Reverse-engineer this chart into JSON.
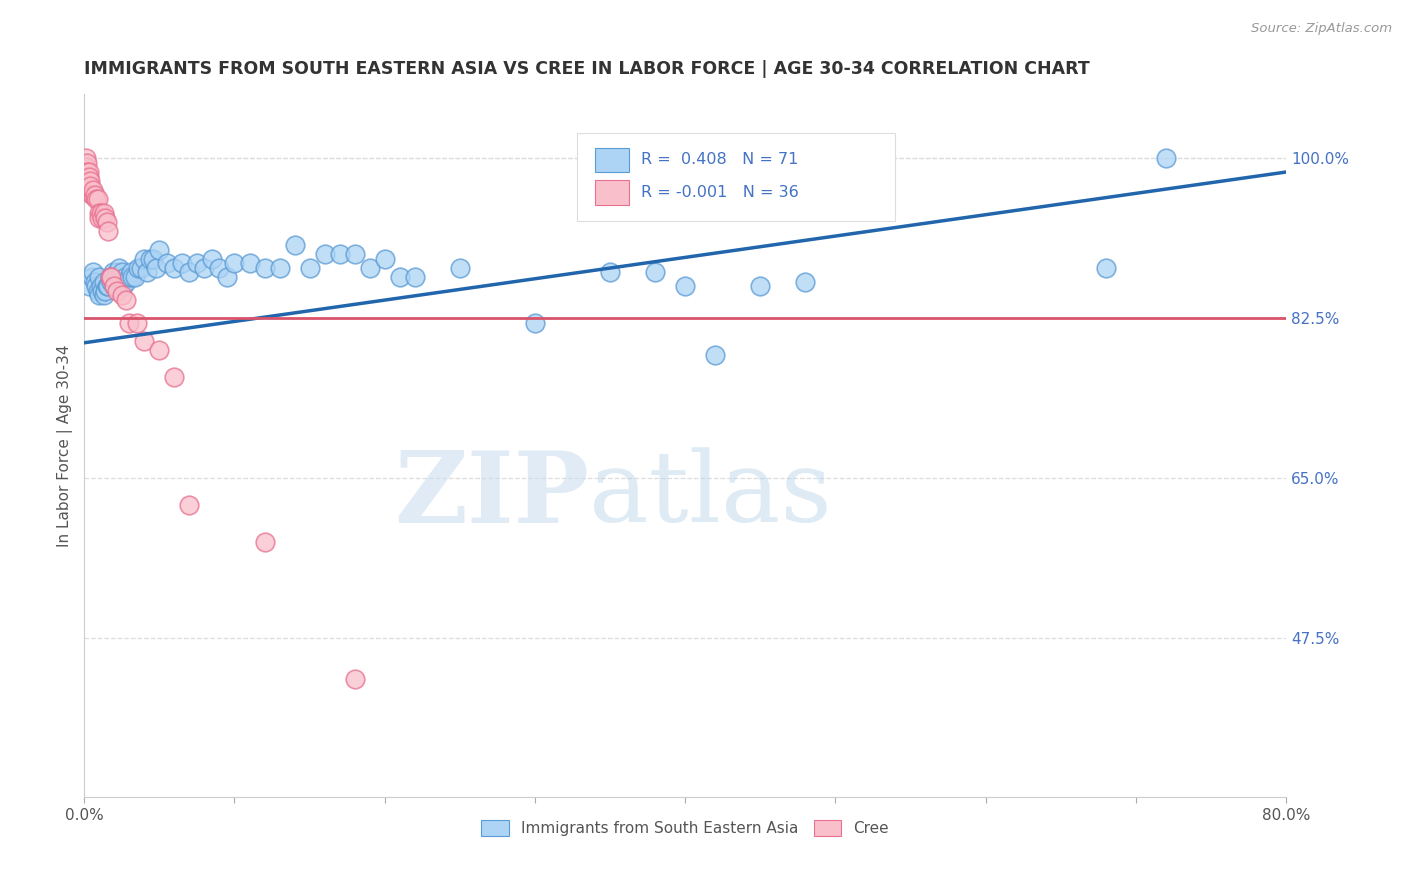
{
  "title": "IMMIGRANTS FROM SOUTH EASTERN ASIA VS CREE IN LABOR FORCE | AGE 30-34 CORRELATION CHART",
  "source": "Source: ZipAtlas.com",
  "ylabel": "In Labor Force | Age 30-34",
  "xlim": [
    0.0,
    0.8
  ],
  "ylim": [
    0.3,
    1.07
  ],
  "xticks": [
    0.0,
    0.1,
    0.2,
    0.3,
    0.4,
    0.5,
    0.6,
    0.7,
    0.8
  ],
  "xticklabels": [
    "0.0%",
    "",
    "",
    "",
    "",
    "",
    "",
    "",
    "80.0%"
  ],
  "yticks_right": [
    0.475,
    0.65,
    0.825,
    1.0
  ],
  "ytickslabels_right": [
    "47.5%",
    "65.0%",
    "82.5%",
    "100.0%"
  ],
  "hlines": [
    0.475,
    0.65,
    0.825,
    1.0
  ],
  "blue_R": 0.408,
  "blue_N": 71,
  "pink_R": -0.001,
  "pink_N": 36,
  "blue_color": "#ADD4F5",
  "pink_color": "#F9BFCA",
  "blue_edge_color": "#5B9BD5",
  "pink_edge_color": "#E87090",
  "blue_line_color": "#2166AC",
  "pink_line_color": "#D9536A",
  "watermark_zip": "ZIP",
  "watermark_atlas": "atlas",
  "blue_trend_x0": 0.0,
  "blue_trend_y0": 0.798,
  "blue_trend_x1": 0.8,
  "blue_trend_y1": 0.985,
  "pink_trend_y": 0.825,
  "blue_scatter_x": [
    0.003,
    0.005,
    0.006,
    0.007,
    0.008,
    0.009,
    0.01,
    0.01,
    0.011,
    0.012,
    0.013,
    0.013,
    0.014,
    0.015,
    0.016,
    0.017,
    0.018,
    0.018,
    0.019,
    0.02,
    0.021,
    0.022,
    0.023,
    0.025,
    0.026,
    0.027,
    0.028,
    0.03,
    0.031,
    0.032,
    0.034,
    0.036,
    0.038,
    0.04,
    0.042,
    0.044,
    0.046,
    0.048,
    0.05,
    0.055,
    0.06,
    0.065,
    0.07,
    0.075,
    0.08,
    0.085,
    0.09,
    0.095,
    0.1,
    0.11,
    0.12,
    0.13,
    0.14,
    0.15,
    0.16,
    0.17,
    0.18,
    0.19,
    0.2,
    0.21,
    0.22,
    0.25,
    0.3,
    0.35,
    0.38,
    0.4,
    0.42,
    0.45,
    0.48,
    0.68,
    0.72
  ],
  "blue_scatter_y": [
    0.86,
    0.87,
    0.875,
    0.865,
    0.86,
    0.855,
    0.85,
    0.87,
    0.86,
    0.855,
    0.85,
    0.865,
    0.855,
    0.86,
    0.86,
    0.87,
    0.87,
    0.865,
    0.875,
    0.86,
    0.87,
    0.875,
    0.88,
    0.875,
    0.86,
    0.87,
    0.865,
    0.87,
    0.875,
    0.87,
    0.87,
    0.88,
    0.88,
    0.89,
    0.875,
    0.89,
    0.89,
    0.88,
    0.9,
    0.885,
    0.88,
    0.885,
    0.875,
    0.885,
    0.88,
    0.89,
    0.88,
    0.87,
    0.885,
    0.885,
    0.88,
    0.88,
    0.905,
    0.88,
    0.895,
    0.895,
    0.895,
    0.88,
    0.89,
    0.87,
    0.87,
    0.88,
    0.82,
    0.875,
    0.875,
    0.86,
    0.785,
    0.86,
    0.865,
    0.88,
    1.0
  ],
  "pink_scatter_x": [
    0.001,
    0.001,
    0.002,
    0.002,
    0.003,
    0.003,
    0.004,
    0.004,
    0.005,
    0.006,
    0.006,
    0.007,
    0.008,
    0.009,
    0.01,
    0.01,
    0.011,
    0.012,
    0.013,
    0.014,
    0.015,
    0.016,
    0.017,
    0.018,
    0.02,
    0.022,
    0.025,
    0.028,
    0.03,
    0.035,
    0.04,
    0.05,
    0.06,
    0.07,
    0.12,
    0.18
  ],
  "pink_scatter_y": [
    1.0,
    0.99,
    0.995,
    0.985,
    0.985,
    0.98,
    0.975,
    0.97,
    0.96,
    0.96,
    0.965,
    0.96,
    0.955,
    0.955,
    0.94,
    0.935,
    0.94,
    0.935,
    0.94,
    0.935,
    0.93,
    0.92,
    0.87,
    0.87,
    0.86,
    0.855,
    0.85,
    0.845,
    0.82,
    0.82,
    0.8,
    0.79,
    0.76,
    0.62,
    0.58,
    0.43
  ]
}
